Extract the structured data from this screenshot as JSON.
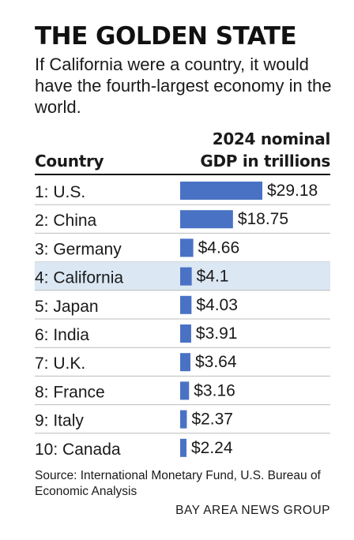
{
  "title": "THE GOLDEN STATE",
  "subtitle": "If California were a country, it would have the fourth-largest economy in the world.",
  "table_header": {
    "country": "Country",
    "gdp_line1": "2024 nominal",
    "gdp_line2": "GDP in trillions"
  },
  "chart_data": {
    "type": "bar",
    "orientation": "horizontal",
    "categories": [
      "1: U.S.",
      "2: China",
      "3: Germany",
      "4: California",
      "5: Japan",
      "6: India",
      "7: U.K.",
      "8: France",
      "9: Italy",
      "10: Canada"
    ],
    "values": [
      29.18,
      18.75,
      4.66,
      4.1,
      4.03,
      3.91,
      3.64,
      3.16,
      2.37,
      2.24
    ],
    "value_labels": [
      "$29.18",
      "$18.75",
      "$4.66",
      "$4.1",
      "$4.03",
      "$3.91",
      "$3.64",
      "$3.16",
      "$2.37",
      "$2.24"
    ],
    "highlight_index": 3,
    "bar_color": "#4a72c4",
    "highlight_row_color": "#dbe7f3",
    "separator_color": "#bdbdbd",
    "xlim": [
      0,
      29.18
    ],
    "grid": false
  },
  "source": "Source: International Monetary Fund, U.S. Bureau of Economic Analysis",
  "credit": "BAY AREA NEWS GROUP"
}
